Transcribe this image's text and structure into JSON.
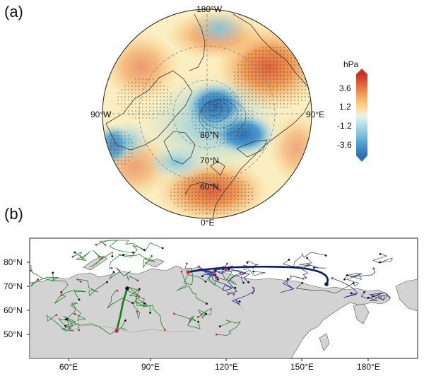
{
  "panel_a": {
    "label": "(a)",
    "lat_labels": [
      "80°N",
      "70°N",
      "60°N"
    ],
    "lon_labels": {
      "top": "180°W",
      "bottom": "0°E",
      "left": "90°W",
      "right": "90°E"
    },
    "colorbar": {
      "unit": "hPa",
      "ticks": [
        "3.6",
        "1.2",
        "-1.2",
        "-3.6"
      ],
      "colors": [
        "#c8322a",
        "#e0633a",
        "#f09a55",
        "#f7c87e",
        "#fbe7b0",
        "#fdfbe8",
        "#e3f1f4",
        "#b5dfe7",
        "#7fc4db",
        "#4a9bcd",
        "#2f6fb3"
      ]
    }
  },
  "panel_b": {
    "label": "(b)",
    "x_ticks": [
      "60°E",
      "90°E",
      "120°E",
      "150°E",
      "180°E"
    ],
    "y_ticks": [
      "80°N",
      "70°N",
      "60°N",
      "50°N"
    ],
    "colors": {
      "land": "#d3d3d3",
      "green_tracks": "#2e7d32",
      "blue_tracks": "#2b2f8f",
      "highlight_blue": "#0b1a6b",
      "highlight_green": "#1b7a1b",
      "endpoint": "#d6204a"
    }
  },
  "chart_data": [
    {
      "type": "heatmap",
      "title": "",
      "projection": "north polar stereographic",
      "xlabel": "",
      "ylabel": "",
      "unit": "hPa",
      "colorbar_ticks": [
        3.6,
        1.2,
        -1.2,
        -3.6
      ],
      "latitude_circles": [
        "80°N",
        "70°N",
        "60°N"
      ],
      "longitude_labels": [
        "180°W",
        "90°E",
        "0°E",
        "90°W"
      ],
      "pattern": "negative anomaly near pole and Kara/Barents seas; positive anomalies over North Pacific and northern Europe/Atlantic"
    },
    {
      "type": "line",
      "title": "",
      "xlabel": "",
      "ylabel": "",
      "xlim": [
        40,
        200
      ],
      "ylim": [
        41,
        85
      ],
      "x_ticks": [
        60,
        90,
        120,
        150,
        180
      ],
      "y_ticks": [
        80,
        70,
        60,
        50
      ],
      "series": [
        {
          "name": "",
          "color": "green",
          "description": "trajectories over western Siberia"
        },
        {
          "name": "",
          "color": "blue",
          "description": "trajectories over eastern Siberia"
        },
        {
          "name": "",
          "highlight": true,
          "description": "thick blue track across northern Siberia"
        },
        {
          "name": "",
          "highlight": true,
          "description": "thick green track near 75°E"
        }
      ]
    }
  ]
}
